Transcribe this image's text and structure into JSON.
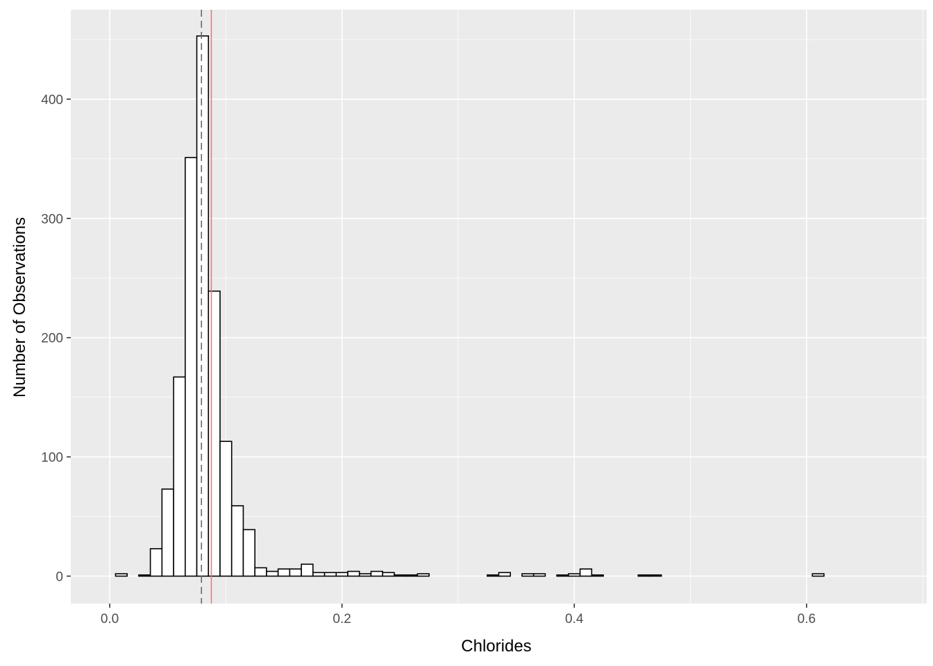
{
  "chart_data": {
    "type": "bar",
    "subtype": "histogram",
    "title": "",
    "xlabel": "Chlorides",
    "ylabel": "Number of Observations",
    "xlim": [
      -0.0335,
      0.7035
    ],
    "ylim": [
      -23,
      475
    ],
    "x_ticks": [
      {
        "value": 0.0,
        "label": "0.0"
      },
      {
        "value": 0.2,
        "label": "0.2"
      },
      {
        "value": 0.4,
        "label": "0.4"
      },
      {
        "value": 0.6,
        "label": "0.6"
      }
    ],
    "x_minor_ticks": [
      0.1,
      0.3,
      0.5,
      0.7
    ],
    "y_ticks": [
      {
        "value": 0,
        "label": "0"
      },
      {
        "value": 100,
        "label": "100"
      },
      {
        "value": 200,
        "label": "200"
      },
      {
        "value": 300,
        "label": "300"
      },
      {
        "value": 400,
        "label": "400"
      }
    ],
    "y_minor_ticks": [
      50,
      150,
      250,
      350,
      450
    ],
    "bin_width": 0.01,
    "bin_centers": [
      0.01,
      0.02,
      0.03,
      0.04,
      0.05,
      0.06,
      0.07,
      0.08,
      0.09,
      0.1,
      0.11,
      0.12,
      0.13,
      0.14,
      0.15,
      0.16,
      0.17,
      0.18,
      0.19,
      0.2,
      0.21,
      0.22,
      0.23,
      0.24,
      0.25,
      0.26,
      0.27,
      0.28,
      0.29,
      0.3,
      0.31,
      0.32,
      0.33,
      0.34,
      0.35,
      0.36,
      0.37,
      0.38,
      0.39,
      0.4,
      0.41,
      0.42,
      0.43,
      0.44,
      0.45,
      0.46,
      0.47,
      0.48,
      0.49,
      0.5,
      0.51,
      0.52,
      0.53,
      0.54,
      0.55,
      0.56,
      0.57,
      0.58,
      0.59,
      0.6,
      0.61
    ],
    "counts": [
      2,
      0,
      1,
      23,
      73,
      167,
      351,
      453,
      239,
      113,
      59,
      39,
      7,
      4,
      6,
      6,
      10,
      3,
      3,
      3,
      4,
      2,
      4,
      3,
      1,
      1,
      2,
      0,
      0,
      0,
      0,
      0,
      1,
      3,
      0,
      2,
      2,
      0,
      1,
      2,
      6,
      1,
      0,
      0,
      0,
      1,
      1,
      0,
      0,
      0,
      0,
      0,
      0,
      0,
      0,
      0,
      0,
      0,
      0,
      0,
      2
    ],
    "vlines": [
      {
        "value": 0.079,
        "style": "dashed",
        "color": "#666666"
      },
      {
        "value": 0.0875,
        "style": "solid",
        "color": "#f8766d"
      }
    ],
    "grid": true,
    "panel_background": "#ebebeb"
  }
}
